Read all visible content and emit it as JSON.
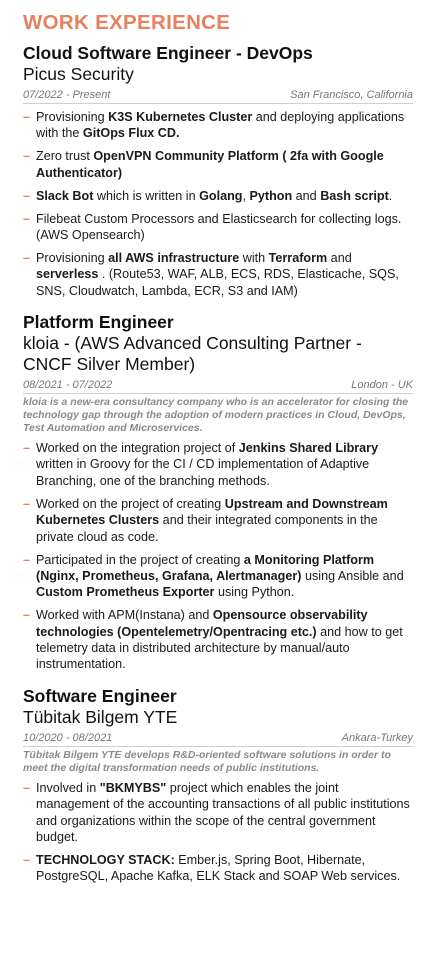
{
  "section": {
    "title": "WORK EXPERIENCE"
  },
  "jobs": [
    {
      "title": "Cloud Software Engineer - DevOps",
      "company": "Picus Security",
      "dates": "07/2022 - Present",
      "location": "San Francisco, California",
      "description": "",
      "bullets": [
        [
          {
            "t": "Provisioning "
          },
          {
            "t": "K3S Kubernetes Cluster",
            "b": true
          },
          {
            "t": " and deploying applications with the "
          },
          {
            "t": "GitOps Flux CD.",
            "b": true
          }
        ],
        [
          {
            "t": "Zero trust "
          },
          {
            "t": "OpenVPN Community Platform ( 2fa with Google Authenticator)",
            "b": true
          }
        ],
        [
          {
            "t": "Slack Bot",
            "b": true
          },
          {
            "t": " which is written in "
          },
          {
            "t": "Golang",
            "b": true
          },
          {
            "t": ", "
          },
          {
            "t": "Python",
            "b": true
          },
          {
            "t": " and "
          },
          {
            "t": "Bash script",
            "b": true
          },
          {
            "t": "."
          }
        ],
        [
          {
            "t": "Filebeat Custom Processors and Elasticsearch for collecting logs. (AWS Opensearch)"
          }
        ],
        [
          {
            "t": "Provisioning "
          },
          {
            "t": "all AWS infrastructure",
            "b": true
          },
          {
            "t": " with "
          },
          {
            "t": "Terraform",
            "b": true
          },
          {
            "t": " and "
          },
          {
            "t": "serverless",
            "b": true
          },
          {
            "t": " . (Route53, WAF, ALB, ECS, RDS, Elasticache, SQS, SNS, Cloudwatch, Lambda, ECR, S3 and IAM)"
          }
        ]
      ]
    },
    {
      "title": "Platform Engineer",
      "company": "kloia - (AWS Advanced Consulting Partner - CNCF Silver Member)",
      "dates": "08/2021 - 07/2022",
      "location": "London - UK",
      "description": "kloia is a new-era consultancy company who is an accelerator for closing the technology gap through the adoption of modern practices in Cloud, DevOps, Test Automation and Microservices.",
      "bullets": [
        [
          {
            "t": "Worked on the integration project of "
          },
          {
            "t": "Jenkins Shared Library",
            "b": true
          },
          {
            "t": " written in Groovy for the CI / CD implementation of Adaptive Branching, one of the branching methods."
          }
        ],
        [
          {
            "t": "Worked on the project of creating "
          },
          {
            "t": "Upstream and Downstream Kubernetes Clusters",
            "b": true
          },
          {
            "t": " and their integrated components in the private cloud as code."
          }
        ],
        [
          {
            "t": "Participated in the project of creating "
          },
          {
            "t": "a Monitoring Platform (Nginx, Prometheus, Grafana, Alertmanager)",
            "b": true
          },
          {
            "t": " using Ansible and "
          },
          {
            "t": "Custom Prometheus Exporter",
            "b": true
          },
          {
            "t": " using Python."
          }
        ],
        [
          {
            "t": "Worked with APM(Instana) and "
          },
          {
            "t": "Opensource observability technologies (Opentelemetry/Opentracing etc.)",
            "b": true
          },
          {
            "t": " and how to get telemetry data in distributed architecture by manual/auto instrumentation."
          }
        ]
      ]
    },
    {
      "title": "Software Engineer",
      "company": "Tübitak Bilgem YTE",
      "dates": "10/2020 - 08/2021",
      "location": "Ankara-Turkey",
      "description": "Tübitak Bilgem YTE develops R&D-oriented software solutions in order to meet the digital transformation needs of public institutions.",
      "bullets": [
        [
          {
            "t": "Involved in "
          },
          {
            "t": "\"BKMYBS\"",
            "b": true
          },
          {
            "t": " project which enables the joint management of the accounting transactions of all public institutions and organizations within the scope of the central government budget."
          }
        ],
        [
          {
            "t": "TECHNOLOGY STACK:",
            "b": true
          },
          {
            "t": " Ember.js, Spring Boot, Hibernate, PostgreSQL, Apache Kafka, ELK Stack and SOAP Web services."
          }
        ]
      ]
    }
  ]
}
